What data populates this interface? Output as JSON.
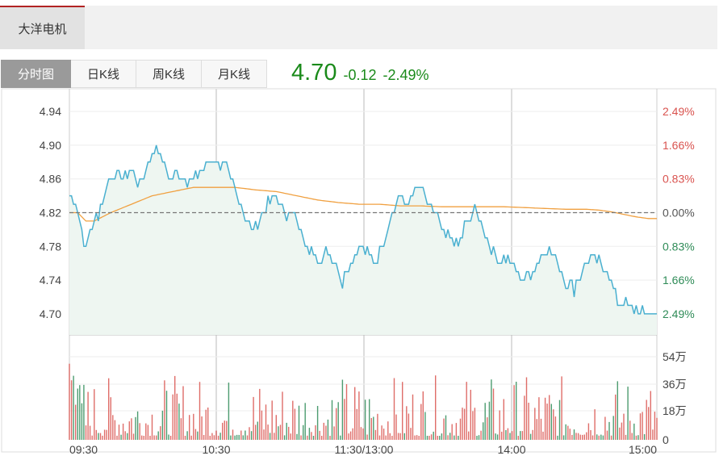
{
  "header": {
    "stock_name": "大洋电机"
  },
  "tabs": [
    {
      "label": "分时图",
      "active": true
    },
    {
      "label": "日K线",
      "active": false
    },
    {
      "label": "周K线",
      "active": false
    },
    {
      "label": "月K线",
      "active": false
    }
  ],
  "quote": {
    "price": "4.70",
    "change": "-0.12",
    "change_pct": "-2.49%"
  },
  "colors": {
    "price_line": "#4ab0d0",
    "avg_line": "#f0a040",
    "up": "#d9534f",
    "down": "#2e8b57",
    "area": "#eef6f1"
  },
  "chart_data": {
    "type": "line",
    "prev_close": 4.82,
    "ylim": [
      4.675,
      4.965
    ],
    "y_ticks_left": [
      "4.94",
      "4.90",
      "4.86",
      "4.82",
      "4.78",
      "4.74",
      "4.70"
    ],
    "y_ticks_right": [
      "2.49%",
      "1.66%",
      "0.83%",
      "0.00%",
      "0.83%",
      "1.66%",
      "2.49%"
    ],
    "x_ticks": [
      "09:30",
      "10:30",
      "11:30/13:00",
      "14:00",
      "15:00"
    ],
    "price_key_points": [
      [
        0,
        4.84
      ],
      [
        3,
        4.83
      ],
      [
        6,
        4.8
      ],
      [
        8,
        4.78
      ],
      [
        10,
        4.8
      ],
      [
        14,
        4.82
      ],
      [
        18,
        4.85
      ],
      [
        22,
        4.87
      ],
      [
        26,
        4.86
      ],
      [
        30,
        4.87
      ],
      [
        34,
        4.85
      ],
      [
        38,
        4.88
      ],
      [
        42,
        4.9
      ],
      [
        45,
        4.88
      ],
      [
        48,
        4.86
      ],
      [
        52,
        4.87
      ],
      [
        56,
        4.86
      ],
      [
        60,
        4.86
      ],
      [
        64,
        4.87
      ],
      [
        68,
        4.88
      ],
      [
        72,
        4.88
      ],
      [
        76,
        4.87
      ],
      [
        80,
        4.85
      ],
      [
        84,
        4.82
      ],
      [
        88,
        4.8
      ],
      [
        92,
        4.81
      ],
      [
        96,
        4.83
      ],
      [
        100,
        4.84
      ],
      [
        104,
        4.82
      ],
      [
        108,
        4.82
      ],
      [
        112,
        4.8
      ],
      [
        116,
        4.78
      ],
      [
        120,
        4.76
      ],
      [
        124,
        4.78
      ],
      [
        128,
        4.76
      ],
      [
        132,
        4.74
      ],
      [
        136,
        4.76
      ],
      [
        140,
        4.78
      ],
      [
        144,
        4.77
      ],
      [
        148,
        4.76
      ],
      [
        152,
        4.79
      ],
      [
        156,
        4.82
      ],
      [
        160,
        4.84
      ],
      [
        164,
        4.83
      ],
      [
        168,
        4.85
      ],
      [
        172,
        4.84
      ],
      [
        176,
        4.82
      ],
      [
        180,
        4.8
      ],
      [
        184,
        4.79
      ],
      [
        188,
        4.78
      ],
      [
        192,
        4.81
      ],
      [
        196,
        4.82
      ],
      [
        200,
        4.8
      ],
      [
        204,
        4.78
      ],
      [
        208,
        4.76
      ],
      [
        212,
        4.77
      ],
      [
        216,
        4.75
      ],
      [
        220,
        4.74
      ],
      [
        224,
        4.75
      ],
      [
        228,
        4.77
      ],
      [
        232,
        4.78
      ],
      [
        236,
        4.76
      ],
      [
        240,
        4.74
      ],
      [
        244,
        4.73
      ],
      [
        248,
        4.75
      ],
      [
        252,
        4.77
      ],
      [
        256,
        4.76
      ],
      [
        260,
        4.75
      ],
      [
        264,
        4.72
      ],
      [
        268,
        4.71
      ],
      [
        272,
        4.71
      ],
      [
        276,
        4.7
      ],
      [
        280,
        4.7
      ],
      [
        284,
        4.7
      ]
    ],
    "avg_key_points": [
      [
        0,
        4.82
      ],
      [
        4,
        4.82
      ],
      [
        8,
        4.81
      ],
      [
        12,
        4.81
      ],
      [
        20,
        4.82
      ],
      [
        30,
        4.83
      ],
      [
        40,
        4.84
      ],
      [
        50,
        4.845
      ],
      [
        60,
        4.85
      ],
      [
        70,
        4.85
      ],
      [
        80,
        4.85
      ],
      [
        90,
        4.847
      ],
      [
        100,
        4.845
      ],
      [
        110,
        4.84
      ],
      [
        120,
        4.835
      ],
      [
        130,
        4.832
      ],
      [
        140,
        4.83
      ],
      [
        150,
        4.83
      ],
      [
        160,
        4.828
      ],
      [
        170,
        4.828
      ],
      [
        180,
        4.827
      ],
      [
        190,
        4.827
      ],
      [
        200,
        4.827
      ],
      [
        210,
        4.827
      ],
      [
        220,
        4.826
      ],
      [
        230,
        4.825
      ],
      [
        240,
        4.824
      ],
      [
        250,
        4.824
      ],
      [
        256,
        4.823
      ],
      [
        262,
        4.821
      ],
      [
        268,
        4.818
      ],
      [
        274,
        4.815
      ],
      [
        280,
        4.813
      ],
      [
        284,
        4.813
      ]
    ],
    "volume": {
      "y_ticks": [
        "54万",
        "36万",
        "18万",
        "0"
      ],
      "max": 600000
    }
  }
}
